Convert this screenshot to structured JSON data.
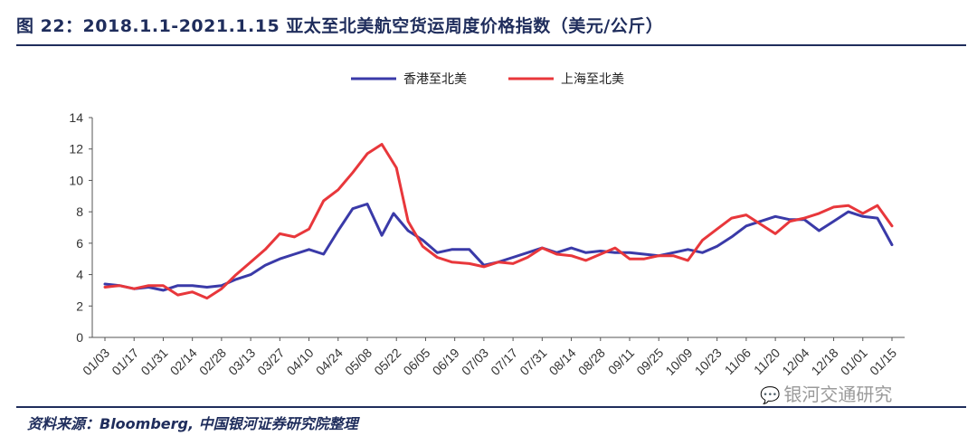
{
  "header": {
    "title": "图 22：2018.1.1-2021.1.15 亚太至北美航空货运周度价格指数（美元/公斤）"
  },
  "footer": {
    "source": "资料来源：Bloomberg, 中国银河证券研究院整理",
    "watermark": "银河交通研究",
    "watermark_icon": "wechat-icon"
  },
  "chart_data": {
    "type": "line",
    "title": "",
    "xlabel": "",
    "ylabel": "",
    "ylim": [
      0,
      14
    ],
    "yticks": [
      0,
      2,
      4,
      6,
      8,
      10,
      12,
      14
    ],
    "grid": false,
    "legend_position": "top-center",
    "x_tick_labels": [
      "01/03",
      "01/17",
      "01/31",
      "02/14",
      "02/28",
      "03/13",
      "03/27",
      "04/10",
      "04/24",
      "05/08",
      "05/22",
      "06/05",
      "06/19",
      "07/03",
      "07/17",
      "07/31",
      "08/14",
      "08/28",
      "09/11",
      "09/25",
      "10/09",
      "10/23",
      "11/06",
      "11/20",
      "12/04",
      "12/18",
      "01/01",
      "01/15"
    ],
    "x_tick_positions": [
      0,
      2,
      4,
      6,
      8,
      10,
      12,
      14,
      16,
      18,
      20,
      22,
      24,
      26,
      28,
      30,
      32,
      34,
      36,
      38,
      40,
      42,
      44,
      46,
      48,
      50,
      52,
      54
    ],
    "series": [
      {
        "name": "香港至北美",
        "color": "#3a3aa8",
        "x": [
          0,
          1,
          2,
          3,
          4,
          5,
          6,
          7,
          8,
          9,
          10,
          11,
          12,
          13,
          14,
          15,
          16,
          17,
          18,
          19,
          19.8,
          20.8,
          21.8,
          22.8,
          23.8,
          25,
          26,
          27,
          28,
          29,
          30,
          31,
          32,
          33,
          34,
          35,
          36,
          37,
          38,
          39,
          40,
          41,
          42,
          43,
          44,
          45,
          46,
          47,
          48,
          49,
          50,
          51,
          52,
          53,
          54
        ],
        "y": [
          3.4,
          3.3,
          3.1,
          3.2,
          3.0,
          3.3,
          3.3,
          3.2,
          3.3,
          3.7,
          4.0,
          4.6,
          5.0,
          5.3,
          5.6,
          5.3,
          6.8,
          8.2,
          8.5,
          6.5,
          7.9,
          6.8,
          6.2,
          5.4,
          5.6,
          5.6,
          4.6,
          4.8,
          5.1,
          5.4,
          5.7,
          5.4,
          5.7,
          5.4,
          5.5,
          5.4,
          5.4,
          5.3,
          5.2,
          5.4,
          5.6,
          5.4,
          5.8,
          6.4,
          7.1,
          7.4,
          7.7,
          7.5,
          7.5,
          6.8,
          7.4,
          8.0,
          7.7,
          7.6,
          5.9
        ]
      },
      {
        "name": "上海至北美",
        "color": "#e8373b",
        "x": [
          0,
          1,
          2,
          3,
          4,
          5,
          6,
          7,
          8,
          9,
          10,
          11,
          12,
          13,
          14,
          15,
          16,
          17,
          18,
          19,
          20,
          20.8,
          21.8,
          22.8,
          23.8,
          25,
          26,
          27,
          28,
          29,
          30,
          31,
          32,
          33,
          34,
          35,
          36,
          37,
          38,
          39,
          40,
          41,
          42,
          43,
          44,
          45,
          46,
          47,
          48,
          49,
          50,
          51,
          52,
          53,
          54
        ],
        "y": [
          3.2,
          3.3,
          3.1,
          3.3,
          3.3,
          2.7,
          2.9,
          2.5,
          3.1,
          4.0,
          4.8,
          5.6,
          6.6,
          6.4,
          6.9,
          8.7,
          9.4,
          10.5,
          11.7,
          12.3,
          10.8,
          7.4,
          5.8,
          5.1,
          4.8,
          4.7,
          4.5,
          4.8,
          4.7,
          5.1,
          5.7,
          5.3,
          5.2,
          4.9,
          5.3,
          5.7,
          5.0,
          5.0,
          5.2,
          5.2,
          4.9,
          6.2,
          6.9,
          7.6,
          7.8,
          7.2,
          6.6,
          7.4,
          7.6,
          7.9,
          8.3,
          8.4,
          7.9,
          8.4,
          7.1
        ]
      }
    ]
  }
}
